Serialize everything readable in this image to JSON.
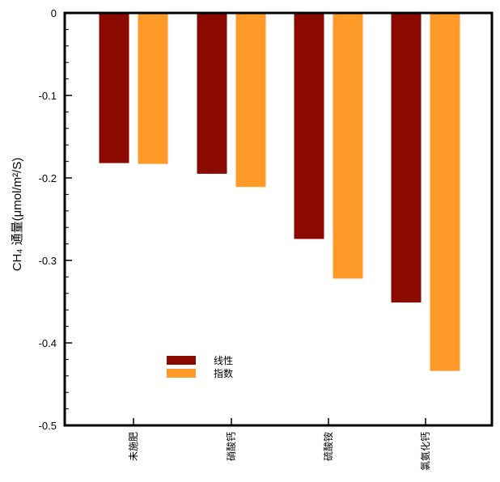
{
  "chart_data": {
    "type": "bar",
    "categories": [
      "未施肥",
      "硝酸钙",
      "硫酸铵",
      "氯氨化钙"
    ],
    "series": [
      {
        "name": "线性",
        "values": [
          -0.182,
          -0.195,
          -0.274,
          -0.351
        ],
        "color": "#8B0A00"
      },
      {
        "name": "指数",
        "values": [
          -0.183,
          -0.211,
          -0.322,
          -0.434
        ],
        "color": "#FF9A28"
      }
    ],
    "ylabel": "CH₄ 通量(μmol/m²/S)",
    "ylim": [
      -0.5,
      0
    ],
    "yticks": [
      "0",
      "-0.1",
      "-0.2",
      "-0.3",
      "-0.4",
      "-0.5"
    ],
    "legend_position": "bottom-left",
    "grid": false
  }
}
